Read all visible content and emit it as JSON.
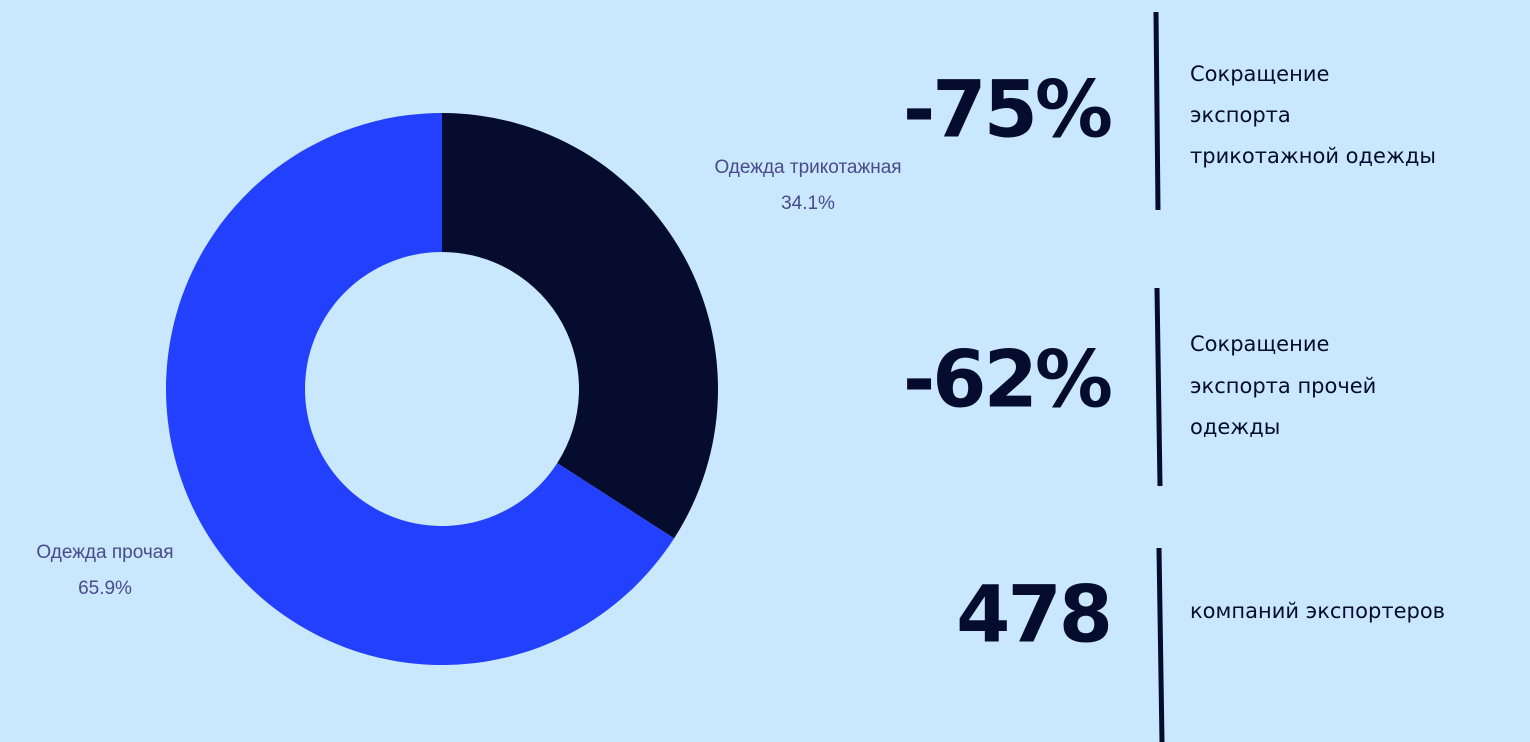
{
  "chart_data": {
    "type": "donut",
    "categories": [
      "Одежда трикотажная",
      "Одежда прочая"
    ],
    "values": [
      34.1,
      65.9
    ],
    "value_labels": [
      "34.1%",
      "65.9%"
    ],
    "colors": [
      "#060c2e",
      "#2340ff"
    ]
  },
  "stats": [
    {
      "value": "-75%",
      "lines": [
        "Сокращение",
        "экспорта",
        "трикотажной одежды"
      ]
    },
    {
      "value": "-62%",
      "lines": [
        "Сокращение",
        "экспорта прочей",
        "одежды"
      ]
    },
    {
      "value": "478",
      "lines": [
        "компаний экспортеров"
      ]
    }
  ]
}
